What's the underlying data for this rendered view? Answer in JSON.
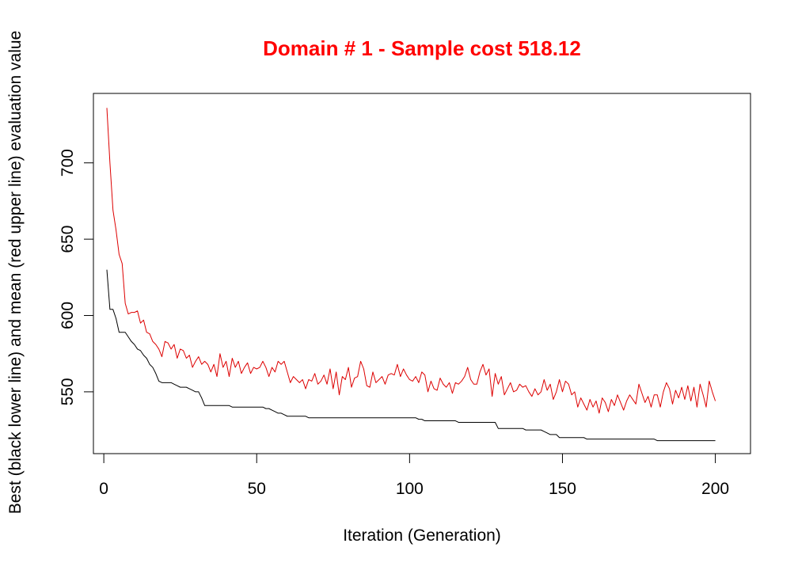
{
  "chart_data": {
    "type": "line",
    "title": "Domain # 1  - Sample cost 518.12",
    "title_color": "#ff0000",
    "xlabel": "Iteration (Generation)",
    "ylabel": "Best (black lower line) and mean (red upper line) evaluation value",
    "xlim": [
      -3.4,
      211.5
    ],
    "ylim": [
      509.5,
      745.5
    ],
    "x_ticks": [
      0,
      50,
      100,
      150,
      200
    ],
    "x_tick_labels": [
      "0",
      "50",
      "100",
      "150",
      "200"
    ],
    "y_ticks": [
      550,
      600,
      650,
      700
    ],
    "y_tick_labels": [
      "550",
      "600",
      "650",
      "700"
    ],
    "series": [
      {
        "name": "best",
        "color": "#000000",
        "x_start": 1,
        "values": [
          630,
          604,
          604,
          598,
          589,
          589,
          589,
          586,
          583,
          581,
          578,
          577,
          574,
          572,
          568,
          566,
          562,
          557,
          556,
          556,
          556,
          556,
          555,
          554,
          553,
          553,
          553,
          552,
          551,
          550,
          550,
          546,
          541,
          541,
          541,
          541,
          541,
          541,
          541,
          541,
          541,
          540,
          540,
          540,
          540,
          540,
          540,
          540,
          540,
          540,
          540,
          540,
          539,
          539,
          538,
          537,
          536,
          536,
          535,
          534,
          534,
          534,
          534,
          534,
          534,
          534,
          533,
          533,
          533,
          533,
          533,
          533,
          533,
          533,
          533,
          533,
          533,
          533,
          533,
          533,
          533,
          533,
          533,
          533,
          533,
          533,
          533,
          533,
          533,
          533,
          533,
          533,
          533,
          533,
          533,
          533,
          533,
          533,
          533,
          533,
          533,
          533,
          532,
          532,
          531,
          531,
          531,
          531,
          531,
          531,
          531,
          531,
          531,
          531,
          531,
          530,
          530,
          530,
          530,
          530,
          530,
          530,
          530,
          530,
          530,
          530,
          530,
          530,
          526,
          526,
          526,
          526,
          526,
          526,
          526,
          526,
          526,
          525,
          525,
          525,
          525,
          525,
          525,
          524,
          523,
          522,
          522,
          522,
          520,
          520,
          520,
          520,
          520,
          520,
          520,
          520,
          520,
          519,
          519,
          519,
          519,
          519,
          519,
          519,
          519,
          519,
          519,
          519,
          519,
          519,
          519,
          519,
          519,
          519,
          519,
          519,
          519,
          519,
          519,
          519,
          518,
          518,
          518,
          518,
          518,
          518,
          518,
          518,
          518,
          518,
          518,
          518,
          518,
          518,
          518,
          518,
          518,
          518,
          518,
          518
        ]
      },
      {
        "name": "mean",
        "color": "#dd0000",
        "x_start": 1,
        "values": [
          736,
          700,
          669,
          656,
          640,
          634,
          608,
          601,
          602,
          602,
          603,
          595,
          597,
          589,
          588,
          583,
          581,
          578,
          573,
          583,
          582,
          578,
          581,
          572,
          578,
          577,
          572,
          574,
          566,
          570,
          573,
          568,
          570,
          568,
          563,
          568,
          560,
          575,
          566,
          570,
          560,
          572,
          566,
          570,
          562,
          566,
          569,
          562,
          566,
          565,
          566,
          570,
          566,
          560,
          566,
          563,
          570,
          568,
          570,
          563,
          556,
          560,
          558,
          556,
          558,
          552,
          558,
          557,
          562,
          555,
          557,
          561,
          555,
          565,
          552,
          563,
          548,
          560,
          558,
          566,
          553,
          559,
          560,
          570,
          565,
          554,
          553,
          563,
          556,
          558,
          560,
          555,
          561,
          562,
          561,
          568,
          560,
          565,
          561,
          558,
          557,
          560,
          556,
          563,
          561,
          550,
          557,
          552,
          551,
          559,
          555,
          553,
          556,
          549,
          556,
          555,
          557,
          560,
          566,
          558,
          555,
          555,
          563,
          568,
          561,
          565,
          547,
          562,
          555,
          560,
          548,
          552,
          556,
          550,
          551,
          555,
          553,
          554,
          550,
          547,
          552,
          548,
          550,
          558,
          551,
          555,
          545,
          550,
          558,
          550,
          557,
          555,
          548,
          550,
          540,
          546,
          542,
          538,
          545,
          540,
          544,
          536,
          546,
          543,
          537,
          545,
          541,
          548,
          543,
          538,
          544,
          548,
          545,
          542,
          555,
          549,
          543,
          547,
          540,
          548,
          548,
          540,
          550,
          556,
          552,
          542,
          551,
          546,
          553,
          545,
          554,
          544,
          553,
          540,
          555,
          548,
          540,
          557,
          550,
          544
        ]
      }
    ]
  }
}
